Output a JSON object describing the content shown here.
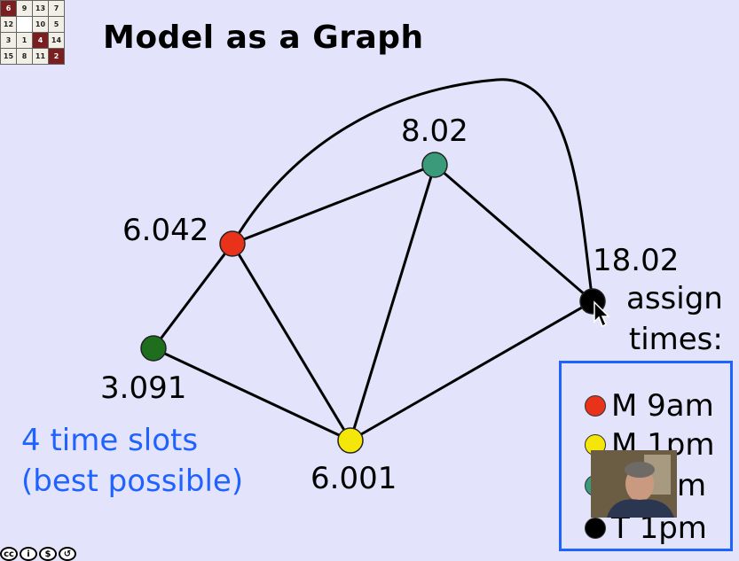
{
  "title": "Model as a Graph",
  "puzzle": {
    "rows": [
      [
        "6",
        "9",
        "13",
        "7"
      ],
      [
        "12",
        "",
        "10",
        "5"
      ],
      [
        "3",
        "1",
        "4",
        "14"
      ],
      [
        "15",
        "8",
        "11",
        "2"
      ]
    ],
    "dark_cells": [
      "6",
      "4",
      "2"
    ]
  },
  "graph": {
    "nodes": [
      {
        "id": "n6042",
        "label": "6.042",
        "color": "#e8321a"
      },
      {
        "id": "n802",
        "label": "8.02",
        "color": "#3a9b7a"
      },
      {
        "id": "n1802",
        "label": "18.02",
        "color": "#000000"
      },
      {
        "id": "n3091",
        "label": "3.091",
        "color": "#1e6e1e"
      },
      {
        "id": "n6001",
        "label": "6.001",
        "color": "#f5e60a"
      }
    ],
    "edges": [
      [
        "n6042",
        "n802"
      ],
      [
        "n6042",
        "n1802"
      ],
      [
        "n6042",
        "n3091"
      ],
      [
        "n6042",
        "n6001"
      ],
      [
        "n802",
        "n6001"
      ],
      [
        "n802",
        "n1802"
      ],
      [
        "n3091",
        "n6001"
      ],
      [
        "n6001",
        "n1802"
      ]
    ]
  },
  "slots_note": {
    "line1": "4 time slots",
    "line2": "(best possible)"
  },
  "assign": {
    "line1": "assign",
    "line2": "times:"
  },
  "legend": [
    {
      "color": "#e8321a",
      "text": "M 9am"
    },
    {
      "color": "#f5e60a",
      "text": "M 1pm"
    },
    {
      "color": "#3a9b7a",
      "text": "T 9am"
    },
    {
      "color": "#000000",
      "text": "T 1pm"
    }
  ],
  "colors": {
    "accent": "#1f62ff",
    "background": "#e3e4fb"
  }
}
